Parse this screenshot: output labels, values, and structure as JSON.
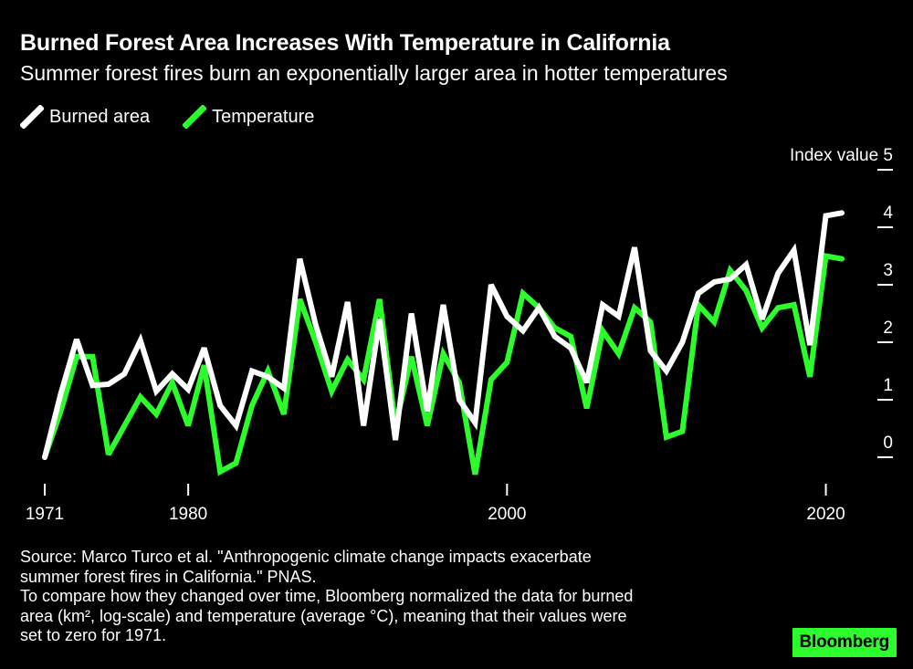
{
  "chart_data": {
    "type": "line",
    "title": "Burned Forest Area Increases With Temperature in California",
    "subtitle": "Summer forest fires burn an exponentially larger area in hotter temperatures",
    "y_axis_title": "Index value",
    "x_ticks": [
      "1971",
      "1980",
      "2000",
      "2020"
    ],
    "y_ticks": [
      "0",
      "1",
      "2",
      "3",
      "4",
      "5"
    ],
    "xlim": [
      1971,
      2021
    ],
    "ylim": [
      0,
      5
    ],
    "grid": false,
    "legend": "top-left",
    "x": [
      1971,
      1972,
      1973,
      1974,
      1975,
      1976,
      1977,
      1978,
      1979,
      1980,
      1981,
      1982,
      1983,
      1984,
      1985,
      1986,
      1987,
      1988,
      1989,
      1990,
      1991,
      1992,
      1993,
      1994,
      1995,
      1996,
      1997,
      1998,
      1999,
      2000,
      2001,
      2002,
      2003,
      2004,
      2005,
      2006,
      2007,
      2008,
      2009,
      2010,
      2011,
      2012,
      2013,
      2014,
      2015,
      2016,
      2017,
      2018,
      2019,
      2020,
      2021
    ],
    "series": [
      {
        "name": "Burned area",
        "color": "#ffffff",
        "values": [
          0.0,
          1.1,
          2.05,
          1.25,
          1.27,
          1.45,
          2.03,
          1.15,
          1.45,
          1.18,
          1.9,
          0.9,
          0.55,
          1.5,
          1.4,
          1.2,
          3.45,
          2.3,
          1.4,
          2.7,
          0.55,
          2.4,
          0.3,
          2.5,
          0.8,
          2.65,
          1.0,
          0.6,
          3.0,
          2.45,
          2.2,
          2.6,
          2.1,
          1.9,
          1.3,
          2.65,
          2.45,
          3.65,
          1.85,
          1.5,
          2.0,
          2.85,
          3.05,
          3.1,
          3.35,
          2.4,
          3.2,
          3.6,
          1.95,
          4.2,
          4.25
        ]
      },
      {
        "name": "Temperature",
        "color": "#2cfc2c",
        "values": [
          0.0,
          0.8,
          1.75,
          1.75,
          0.05,
          0.55,
          1.05,
          0.75,
          1.3,
          0.55,
          1.6,
          -0.25,
          -0.1,
          0.9,
          1.5,
          0.75,
          2.75,
          2.0,
          1.15,
          1.7,
          1.35,
          2.75,
          0.55,
          1.75,
          0.55,
          1.8,
          1.3,
          -0.3,
          1.35,
          1.65,
          2.85,
          2.6,
          2.25,
          2.1,
          0.85,
          2.2,
          1.8,
          2.6,
          2.35,
          0.35,
          0.45,
          2.65,
          2.35,
          3.25,
          2.9,
          2.25,
          2.6,
          2.65,
          1.4,
          3.5,
          3.45
        ]
      }
    ]
  },
  "source_lines": [
    "Source: Marco Turco et al. \"Anthropogenic climate change impacts exacerbate",
    "summer forest fires in California.\" PNAS.",
    "To compare how they changed over time, Bloomberg normalized the data for burned",
    "area (km², log-scale) and temperature (average °C), meaning that their values were",
    "set to zero for 1971."
  ],
  "logo": "Bloomberg"
}
